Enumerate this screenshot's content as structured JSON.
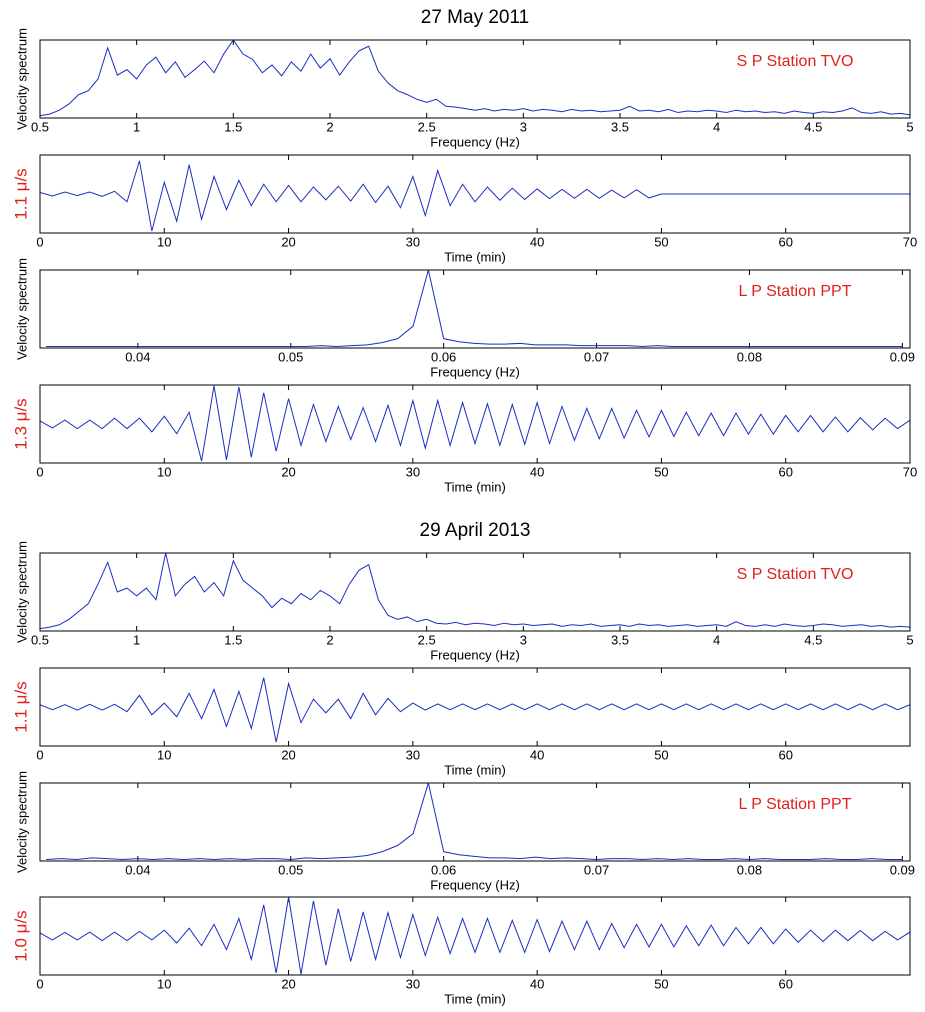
{
  "chart_data": [
    {
      "type": "line",
      "title": "27 May 2011",
      "ylabel": "Velocity spectrum",
      "xlabel": "Frequency (Hz)",
      "annotation": "S P Station TVO",
      "color": "#1a2fc0",
      "x": [
        0.5,
        0.55,
        0.6,
        0.65,
        0.7,
        0.75,
        0.8,
        0.85,
        0.9,
        0.95,
        1,
        1.05,
        1.1,
        1.15,
        1.2,
        1.25,
        1.3,
        1.35,
        1.4,
        1.45,
        1.5,
        1.55,
        1.6,
        1.65,
        1.7,
        1.75,
        1.8,
        1.85,
        1.9,
        1.95,
        2,
        2.05,
        2.1,
        2.15,
        2.2,
        2.25,
        2.3,
        2.35,
        2.4,
        2.45,
        2.5,
        2.55,
        2.6,
        2.65,
        2.7,
        2.75,
        2.8,
        2.85,
        2.9,
        2.95,
        3,
        3.05,
        3.1,
        3.15,
        3.2,
        3.25,
        3.3,
        3.35,
        3.4,
        3.45,
        3.5,
        3.55,
        3.6,
        3.65,
        3.7,
        3.75,
        3.8,
        3.85,
        3.9,
        3.95,
        4,
        4.05,
        4.1,
        4.15,
        4.2,
        4.25,
        4.3,
        4.35,
        4.4,
        4.45,
        4.5,
        4.55,
        4.6,
        4.65,
        4.7,
        4.75,
        4.8,
        4.85,
        4.9,
        4.95,
        5
      ],
      "values": [
        0.03,
        0.05,
        0.1,
        0.18,
        0.3,
        0.35,
        0.5,
        0.9,
        0.55,
        0.62,
        0.5,
        0.68,
        0.78,
        0.58,
        0.72,
        0.52,
        0.62,
        0.73,
        0.58,
        0.82,
        1.0,
        0.82,
        0.75,
        0.58,
        0.68,
        0.54,
        0.72,
        0.6,
        0.82,
        0.64,
        0.76,
        0.55,
        0.72,
        0.86,
        0.92,
        0.6,
        0.45,
        0.35,
        0.3,
        0.24,
        0.2,
        0.24,
        0.15,
        0.14,
        0.12,
        0.1,
        0.12,
        0.09,
        0.11,
        0.1,
        0.12,
        0.09,
        0.11,
        0.1,
        0.08,
        0.11,
        0.09,
        0.1,
        0.08,
        0.09,
        0.1,
        0.15,
        0.09,
        0.1,
        0.08,
        0.11,
        0.07,
        0.09,
        0.08,
        0.1,
        0.09,
        0.07,
        0.1,
        0.08,
        0.09,
        0.07,
        0.08,
        0.06,
        0.09,
        0.07,
        0.06,
        0.08,
        0.07,
        0.09,
        0.13,
        0.07,
        0.06,
        0.08,
        0.05,
        0.06,
        0.04
      ],
      "xlim": [
        0.5,
        5
      ],
      "xticks": [
        0.5,
        1,
        1.5,
        2,
        2.5,
        3,
        3.5,
        4,
        4.5,
        5
      ],
      "ylim": [
        0,
        1
      ]
    },
    {
      "type": "line",
      "ylabel": "1.1 μ/s",
      "xlabel": "Time (min)",
      "color": "#1a2fc0",
      "x": [
        0,
        1,
        2,
        3,
        4,
        5,
        6,
        7,
        8,
        9,
        10,
        11,
        12,
        13,
        14,
        15,
        16,
        17,
        18,
        19,
        20,
        21,
        22,
        23,
        24,
        25,
        26,
        27,
        28,
        29,
        30,
        31,
        32,
        33,
        34,
        35,
        36,
        37,
        38,
        39,
        40,
        41,
        42,
        43,
        44,
        45,
        46,
        47,
        48,
        49,
        50,
        51,
        52,
        53,
        54,
        55,
        56,
        57,
        58,
        59,
        60,
        61,
        62,
        63,
        64,
        65,
        66,
        67,
        68,
        69,
        70
      ],
      "values": [
        0.04,
        -0.05,
        0.05,
        -0.04,
        0.05,
        -0.06,
        0.07,
        -0.2,
        0.85,
        -0.95,
        0.3,
        -0.7,
        0.75,
        -0.65,
        0.45,
        -0.4,
        0.35,
        -0.3,
        0.25,
        -0.2,
        0.22,
        -0.2,
        0.18,
        -0.15,
        0.2,
        -0.18,
        0.25,
        -0.22,
        0.2,
        -0.35,
        0.45,
        -0.55,
        0.6,
        -0.3,
        0.25,
        -0.2,
        0.18,
        -0.16,
        0.15,
        -0.14,
        0.13,
        -0.12,
        0.12,
        -0.11,
        0.12,
        -0.11,
        0.1,
        -0.1,
        0.11,
        -0.1,
        0,
        0,
        0,
        0,
        0,
        0,
        0,
        0,
        0,
        0,
        0,
        0,
        0,
        0,
        0,
        0,
        0,
        0,
        0,
        0,
        0
      ],
      "xlim": [
        0,
        70
      ],
      "xticks": [
        0,
        10,
        20,
        30,
        40,
        50,
        60,
        70
      ],
      "ylim": [
        -1,
        1
      ]
    },
    {
      "type": "line",
      "ylabel": "Velocity spectrum",
      "xlabel": "Frequency (Hz)",
      "annotation": "L P Station PPT",
      "color": "#1a2fc0",
      "x": [
        0.034,
        0.035,
        0.036,
        0.037,
        0.038,
        0.039,
        0.04,
        0.041,
        0.042,
        0.043,
        0.044,
        0.045,
        0.046,
        0.047,
        0.048,
        0.049,
        0.05,
        0.051,
        0.052,
        0.053,
        0.054,
        0.055,
        0.056,
        0.057,
        0.058,
        0.059,
        0.06,
        0.061,
        0.062,
        0.063,
        0.064,
        0.065,
        0.066,
        0.067,
        0.068,
        0.069,
        0.07,
        0.071,
        0.072,
        0.073,
        0.074,
        0.075,
        0.076,
        0.077,
        0.078,
        0.079,
        0.08,
        0.081,
        0.082,
        0.083,
        0.084,
        0.085,
        0.086,
        0.087,
        0.088,
        0.089,
        0.09
      ],
      "values": [
        0.02,
        0.02,
        0.02,
        0.02,
        0.02,
        0.02,
        0.02,
        0.02,
        0.02,
        0.02,
        0.02,
        0.02,
        0.02,
        0.02,
        0.02,
        0.02,
        0.02,
        0.02,
        0.03,
        0.02,
        0.03,
        0.04,
        0.07,
        0.12,
        0.28,
        1.0,
        0.12,
        0.08,
        0.06,
        0.05,
        0.05,
        0.06,
        0.04,
        0.04,
        0.04,
        0.03,
        0.03,
        0.03,
        0.03,
        0.02,
        0.03,
        0.02,
        0.02,
        0.02,
        0.02,
        0.02,
        0.02,
        0.02,
        0.02,
        0.02,
        0.02,
        0.02,
        0.02,
        0.02,
        0.02,
        0.02,
        0.02
      ],
      "xlim": [
        0.0336,
        0.0905
      ],
      "xticks": [
        0.04,
        0.05,
        0.06,
        0.07,
        0.08,
        0.09
      ],
      "ylim": [
        0,
        1
      ]
    },
    {
      "type": "line",
      "ylabel": "1.3 μ/s",
      "xlabel": "Time (min)",
      "color": "#1a2fc0",
      "x": [
        0,
        1,
        2,
        3,
        4,
        5,
        6,
        7,
        8,
        9,
        10,
        11,
        12,
        13,
        14,
        15,
        16,
        17,
        18,
        19,
        20,
        21,
        22,
        23,
        24,
        25,
        26,
        27,
        28,
        29,
        30,
        31,
        32,
        33,
        34,
        35,
        36,
        37,
        38,
        39,
        40,
        41,
        42,
        43,
        44,
        45,
        46,
        47,
        48,
        49,
        50,
        51,
        52,
        53,
        54,
        55,
        56,
        57,
        58,
        59,
        60,
        61,
        62,
        63,
        64,
        65,
        66,
        67,
        68,
        69,
        70
      ],
      "values": [
        0.08,
        -0.1,
        0.1,
        -0.12,
        0.1,
        -0.12,
        0.15,
        -0.12,
        0.15,
        -0.2,
        0.2,
        -0.25,
        0.3,
        -0.95,
        0.98,
        -0.92,
        0.95,
        -0.85,
        0.8,
        -0.7,
        0.65,
        -0.55,
        0.5,
        -0.45,
        0.45,
        -0.4,
        0.42,
        -0.45,
        0.48,
        -0.55,
        0.6,
        -0.62,
        0.6,
        -0.55,
        0.55,
        -0.5,
        0.52,
        -0.55,
        0.5,
        -0.52,
        0.55,
        -0.5,
        0.45,
        -0.42,
        0.4,
        -0.38,
        0.4,
        -0.36,
        0.35,
        -0.33,
        0.35,
        -0.32,
        0.3,
        -0.3,
        0.28,
        -0.3,
        0.28,
        -0.26,
        0.25,
        -0.26,
        0.22,
        -0.2,
        0.22,
        -0.2,
        0.18,
        -0.2,
        0.16,
        -0.15,
        0.15,
        -0.12,
        0.1
      ],
      "xlim": [
        0,
        70
      ],
      "xticks": [
        0,
        10,
        20,
        30,
        40,
        50,
        60,
        70
      ],
      "ylim": [
        -1,
        1
      ]
    },
    {
      "type": "line",
      "title": "29 April 2013",
      "ylabel": "Velocity spectrum",
      "xlabel": "Frequency (Hz)",
      "annotation": "S P Station TVO",
      "color": "#1a2fc0",
      "x": [
        0.5,
        0.55,
        0.6,
        0.65,
        0.7,
        0.75,
        0.8,
        0.85,
        0.9,
        0.95,
        1,
        1.05,
        1.1,
        1.15,
        1.2,
        1.25,
        1.3,
        1.35,
        1.4,
        1.45,
        1.5,
        1.55,
        1.6,
        1.65,
        1.7,
        1.75,
        1.8,
        1.85,
        1.9,
        1.95,
        2,
        2.05,
        2.1,
        2.15,
        2.2,
        2.25,
        2.3,
        2.35,
        2.4,
        2.45,
        2.5,
        2.55,
        2.6,
        2.65,
        2.7,
        2.75,
        2.8,
        2.85,
        2.9,
        2.95,
        3,
        3.05,
        3.1,
        3.15,
        3.2,
        3.25,
        3.3,
        3.35,
        3.4,
        3.45,
        3.5,
        3.55,
        3.6,
        3.65,
        3.7,
        3.75,
        3.8,
        3.85,
        3.9,
        3.95,
        4,
        4.05,
        4.1,
        4.15,
        4.2,
        4.25,
        4.3,
        4.35,
        4.4,
        4.45,
        4.5,
        4.55,
        4.6,
        4.65,
        4.7,
        4.75,
        4.8,
        4.85,
        4.9,
        4.95,
        5
      ],
      "values": [
        0.03,
        0.05,
        0.08,
        0.15,
        0.25,
        0.35,
        0.6,
        0.88,
        0.5,
        0.55,
        0.45,
        0.55,
        0.4,
        1.0,
        0.45,
        0.6,
        0.7,
        0.5,
        0.62,
        0.45,
        0.9,
        0.65,
        0.55,
        0.45,
        0.3,
        0.42,
        0.35,
        0.48,
        0.4,
        0.52,
        0.45,
        0.35,
        0.6,
        0.78,
        0.85,
        0.4,
        0.2,
        0.15,
        0.18,
        0.12,
        0.15,
        0.1,
        0.09,
        0.11,
        0.08,
        0.1,
        0.09,
        0.07,
        0.1,
        0.08,
        0.09,
        0.07,
        0.08,
        0.09,
        0.06,
        0.08,
        0.07,
        0.09,
        0.06,
        0.07,
        0.08,
        0.06,
        0.09,
        0.07,
        0.08,
        0.06,
        0.07,
        0.08,
        0.06,
        0.07,
        0.08,
        0.06,
        0.12,
        0.07,
        0.06,
        0.08,
        0.06,
        0.09,
        0.07,
        0.06,
        0.07,
        0.09,
        0.08,
        0.06,
        0.07,
        0.08,
        0.06,
        0.07,
        0.05,
        0.06,
        0.05
      ],
      "xlim": [
        0.5,
        5
      ],
      "xticks": [
        0.5,
        1,
        1.5,
        2,
        2.5,
        3,
        3.5,
        4,
        4.5,
        5
      ],
      "ylim": [
        0,
        1
      ]
    },
    {
      "type": "line",
      "ylabel": "1.1 μ/s",
      "xlabel": "Time (min)",
      "color": "#1a2fc0",
      "x": [
        0,
        1,
        2,
        3,
        4,
        5,
        6,
        7,
        8,
        9,
        10,
        11,
        12,
        13,
        14,
        15,
        16,
        17,
        18,
        19,
        20,
        21,
        22,
        23,
        24,
        25,
        26,
        27,
        28,
        29,
        30,
        31,
        32,
        33,
        34,
        35,
        36,
        37,
        38,
        39,
        40,
        41,
        42,
        43,
        44,
        45,
        46,
        47,
        48,
        49,
        50,
        51,
        52,
        53,
        54,
        55,
        56,
        57,
        58,
        59,
        60,
        61,
        62,
        63,
        64,
        65,
        66,
        67,
        68,
        69,
        70
      ],
      "values": [
        0.06,
        -0.07,
        0.06,
        -0.08,
        0.07,
        -0.08,
        0.07,
        -0.12,
        0.3,
        -0.2,
        0.1,
        -0.25,
        0.35,
        -0.3,
        0.45,
        -0.5,
        0.4,
        -0.55,
        0.75,
        -0.9,
        0.6,
        -0.4,
        0.2,
        -0.15,
        0.2,
        -0.3,
        0.35,
        -0.2,
        0.22,
        -0.12,
        0.1,
        -0.08,
        0.08,
        -0.07,
        0.08,
        -0.07,
        0.08,
        -0.07,
        0.08,
        -0.07,
        0.08,
        -0.07,
        0.08,
        -0.07,
        0.08,
        -0.07,
        0.08,
        -0.07,
        0.08,
        -0.07,
        0.08,
        -0.07,
        0.08,
        -0.07,
        0.08,
        -0.07,
        0.08,
        -0.07,
        0.08,
        -0.07,
        0.08,
        -0.07,
        0.08,
        -0.07,
        0.08,
        -0.07,
        0.08,
        -0.07,
        0.08,
        -0.07,
        0.06
      ],
      "xlim": [
        0,
        70
      ],
      "xticks": [
        0,
        10,
        20,
        30,
        40,
        50,
        60
      ],
      "ylim": [
        -1,
        1
      ]
    },
    {
      "type": "line",
      "ylabel": "Velocity spectrum",
      "xlabel": "Frequency (Hz)",
      "annotation": "L P Station PPT",
      "color": "#1a2fc0",
      "x": [
        0.034,
        0.035,
        0.036,
        0.037,
        0.038,
        0.039,
        0.04,
        0.041,
        0.042,
        0.043,
        0.044,
        0.045,
        0.046,
        0.047,
        0.048,
        0.049,
        0.05,
        0.051,
        0.052,
        0.053,
        0.054,
        0.055,
        0.056,
        0.057,
        0.058,
        0.059,
        0.06,
        0.061,
        0.062,
        0.063,
        0.064,
        0.065,
        0.066,
        0.067,
        0.068,
        0.069,
        0.07,
        0.071,
        0.072,
        0.073,
        0.074,
        0.075,
        0.076,
        0.077,
        0.078,
        0.079,
        0.08,
        0.081,
        0.082,
        0.083,
        0.084,
        0.085,
        0.086,
        0.087,
        0.088,
        0.089,
        0.09
      ],
      "values": [
        0.02,
        0.03,
        0.02,
        0.04,
        0.03,
        0.02,
        0.03,
        0.02,
        0.03,
        0.02,
        0.03,
        0.02,
        0.03,
        0.02,
        0.03,
        0.03,
        0.02,
        0.04,
        0.03,
        0.04,
        0.05,
        0.07,
        0.12,
        0.2,
        0.35,
        1.0,
        0.12,
        0.08,
        0.06,
        0.04,
        0.04,
        0.03,
        0.05,
        0.03,
        0.04,
        0.03,
        0.02,
        0.03,
        0.03,
        0.02,
        0.03,
        0.02,
        0.03,
        0.02,
        0.02,
        0.03,
        0.02,
        0.03,
        0.02,
        0.02,
        0.02,
        0.03,
        0.02,
        0.02,
        0.03,
        0.02,
        0.02
      ],
      "xlim": [
        0.0336,
        0.0905
      ],
      "xticks": [
        0.04,
        0.05,
        0.06,
        0.07,
        0.08,
        0.09
      ],
      "ylim": [
        0,
        1
      ]
    },
    {
      "type": "line",
      "ylabel": "1.0 μ/s",
      "xlabel": "Time (min)",
      "color": "#1a2fc0",
      "x": [
        0,
        1,
        2,
        3,
        4,
        5,
        6,
        7,
        8,
        9,
        10,
        11,
        12,
        13,
        14,
        15,
        16,
        17,
        18,
        19,
        20,
        21,
        22,
        23,
        24,
        25,
        26,
        27,
        28,
        29,
        30,
        31,
        32,
        33,
        34,
        35,
        36,
        37,
        38,
        39,
        40,
        41,
        42,
        43,
        44,
        45,
        46,
        47,
        48,
        49,
        50,
        51,
        52,
        53,
        54,
        55,
        56,
        57,
        58,
        59,
        60,
        61,
        62,
        63,
        64,
        65,
        66,
        67,
        68,
        69,
        70
      ],
      "values": [
        0.08,
        -0.1,
        0.09,
        -0.1,
        0.1,
        -0.12,
        0.1,
        -0.12,
        0.12,
        -0.1,
        0.15,
        -0.18,
        0.2,
        -0.25,
        0.3,
        -0.35,
        0.45,
        -0.6,
        0.8,
        -0.95,
        1.0,
        -0.98,
        0.9,
        -0.75,
        0.7,
        -0.65,
        0.62,
        -0.6,
        0.6,
        -0.55,
        0.55,
        -0.5,
        0.48,
        -0.45,
        0.45,
        -0.42,
        0.45,
        -0.42,
        0.4,
        -0.42,
        0.42,
        -0.4,
        0.38,
        -0.35,
        0.38,
        -0.35,
        0.32,
        -0.3,
        0.3,
        -0.28,
        0.3,
        -0.28,
        0.26,
        -0.25,
        0.28,
        -0.25,
        0.22,
        -0.2,
        0.22,
        -0.2,
        0.18,
        -0.16,
        0.15,
        -0.14,
        0.15,
        -0.12,
        0.14,
        -0.12,
        0.12,
        -0.1,
        0.1
      ],
      "xlim": [
        0,
        70
      ],
      "xticks": [
        0,
        10,
        20,
        30,
        40,
        50,
        60
      ],
      "ylim": [
        -1,
        1
      ]
    }
  ]
}
